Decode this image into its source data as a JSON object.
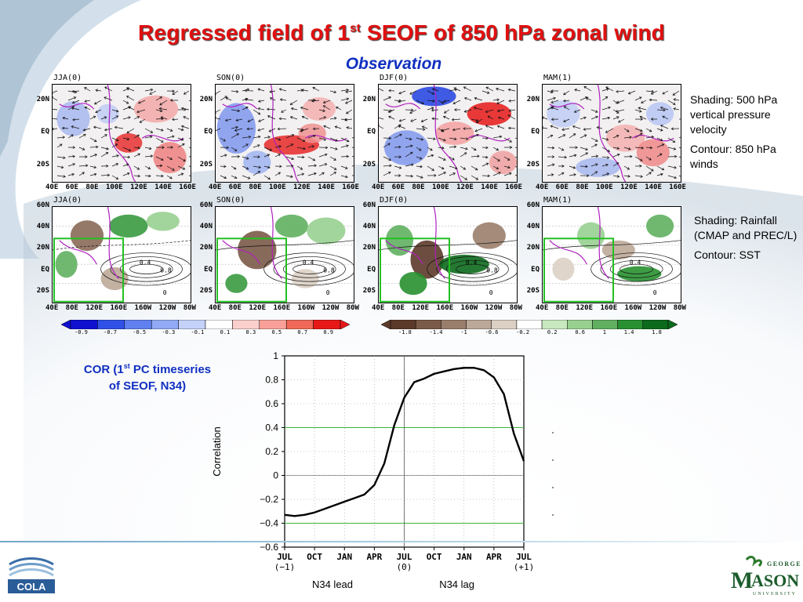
{
  "slide": {
    "title_main": "Regressed field of 1",
    "title_sup": "st",
    "title_rest": " SEOF of 850 hPa zonal wind",
    "subtitle": "Observation"
  },
  "top_row": {
    "panels": [
      {
        "label": "JJA(0)"
      },
      {
        "label": "SON(0)"
      },
      {
        "label": "DJF(0)"
      },
      {
        "label": "MAM(1)"
      }
    ],
    "y_ticks": [
      "20N",
      "EQ",
      "20S"
    ],
    "x_ticks": [
      "40E",
      "60E",
      "80E",
      "100E",
      "120E",
      "140E",
      "160E"
    ],
    "note_1": "Shading: 500 hPa vertical pressure velocity",
    "note_2": "Contour: 850 hPa winds"
  },
  "bottom_row": {
    "panels": [
      {
        "label": "JJA(0)"
      },
      {
        "label": "SON(0)"
      },
      {
        "label": "DJF(0)"
      },
      {
        "label": "MAM(1)"
      }
    ],
    "y_ticks": [
      "60N",
      "40N",
      "20N",
      "EQ",
      "20S"
    ],
    "x_ticks": [
      "40E",
      "80E",
      "120E",
      "160E",
      "160W",
      "120W",
      "80W"
    ],
    "contour_labels": [
      "0.4",
      "0.8",
      "0"
    ],
    "note_1": "Shading: Rainfall (CMAP and PREC/L)",
    "note_2": "Contour: SST"
  },
  "colorbars": {
    "omega_ticks": [
      "-0.9",
      "-0.7",
      "-0.5",
      "-0.3",
      "-0.1",
      "0.1",
      "0.3",
      "0.5",
      "0.7",
      "0.9"
    ],
    "omega_colors": [
      "#1010d0",
      "#3050e8",
      "#6080f0",
      "#90aaf6",
      "#c4d2fa",
      "#ffffff",
      "#fbd0cc",
      "#f8a098",
      "#f06858",
      "#e81818"
    ],
    "rain_ticks": [
      "-1.8",
      "-1.4",
      "-1",
      "-0.6",
      "-0.2",
      "0.2",
      "0.6",
      "1",
      "1.4",
      "1.8"
    ],
    "rain_colors": [
      "#5c3a2a",
      "#7a5a48",
      "#9a7e6c",
      "#bca898",
      "#dcd0c4",
      "#ffffff",
      "#c8e8c0",
      "#98d090",
      "#60b060",
      "#289030",
      "#0c6a1c"
    ]
  },
  "cor_label": {
    "line1": "COR (1",
    "sup": "st",
    "line1_rest": " PC timeseries",
    "line2": "of SEOF, N34)"
  },
  "chart_data": {
    "type": "line",
    "ylabel": "Correlation",
    "ylim": [
      -0.6,
      1
    ],
    "yticks": [
      "1",
      "0.8",
      "0.6",
      "0.4",
      "0.2",
      "0",
      "−0.2",
      "−0.4",
      "−0.6"
    ],
    "xtick_labels": [
      "JUL",
      "OCT",
      "JAN",
      "APR",
      "JUL",
      "OCT",
      "JAN",
      "APR",
      "JUL"
    ],
    "xtick_sublabels": [
      "(−1)",
      "(0)",
      "(+1)"
    ],
    "x_region_labels": [
      "N34 lead",
      "N34 lag"
    ],
    "reference_lines": [
      0.4,
      -0.4
    ],
    "series": [
      {
        "values": [
          -0.33,
          -0.34,
          -0.33,
          -0.31,
          -0.28,
          -0.25,
          -0.22,
          -0.19,
          -0.16,
          -0.08,
          0.1,
          0.42,
          0.65,
          0.78,
          0.81,
          0.85,
          0.87,
          0.89,
          0.9,
          0.9,
          0.88,
          0.82,
          0.68,
          0.35,
          0.12
        ]
      }
    ]
  }
}
